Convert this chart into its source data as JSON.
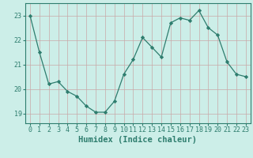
{
  "x": [
    0,
    1,
    2,
    3,
    4,
    5,
    6,
    7,
    8,
    9,
    10,
    11,
    12,
    13,
    14,
    15,
    16,
    17,
    18,
    19,
    20,
    21,
    22,
    23
  ],
  "y": [
    23.0,
    21.5,
    20.2,
    20.3,
    19.9,
    19.7,
    19.3,
    19.05,
    19.05,
    19.5,
    20.6,
    21.2,
    22.1,
    21.7,
    21.3,
    22.7,
    22.9,
    22.8,
    23.2,
    22.5,
    22.2,
    21.1,
    20.6,
    20.5
  ],
  "line_color": "#2e7d6e",
  "marker": "D",
  "marker_size": 2.2,
  "bg_color": "#cceee8",
  "grid_color": "#c8a8a8",
  "xlabel": "Humidex (Indice chaleur)",
  "xlabel_fontsize": 7.5,
  "tick_fontsize": 6.0,
  "ylim": [
    18.6,
    23.5
  ],
  "xlim": [
    -0.5,
    23.5
  ],
  "yticks": [
    19,
    20,
    21,
    22,
    23
  ],
  "xticks": [
    0,
    1,
    2,
    3,
    4,
    5,
    6,
    7,
    8,
    9,
    10,
    11,
    12,
    13,
    14,
    15,
    16,
    17,
    18,
    19,
    20,
    21,
    22,
    23
  ]
}
